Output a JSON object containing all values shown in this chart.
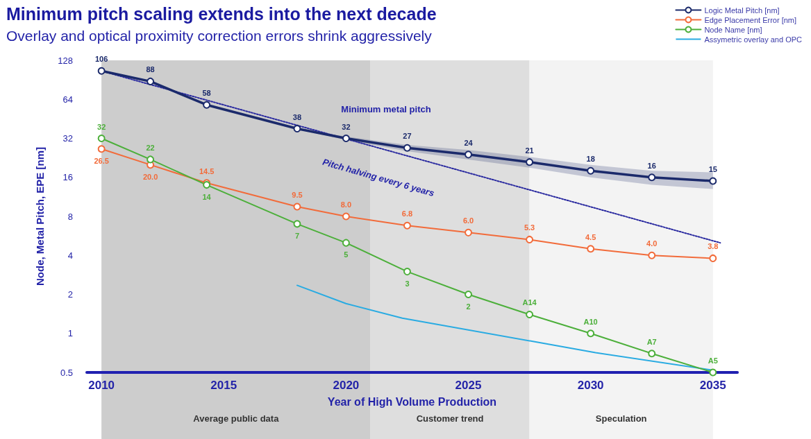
{
  "chart_data": {
    "type": "line",
    "title": "Minimum pitch scaling extends into the next decade",
    "subtitle": "Overlay and optical proximity correction errors shrink aggressively",
    "xlabel": "Year of High Volume Production",
    "ylabel": "Node, Metal Pitch, EPE [nm]",
    "x": [
      2010,
      2012,
      2014.3,
      2018,
      2020,
      2022.5,
      2025,
      2027.5,
      2030,
      2032.5,
      2035
    ],
    "series": [
      {
        "name": "Logic Metal Pitch [nm]",
        "color": "#1b2a6b",
        "values": [
          106,
          88,
          58,
          38,
          32,
          27,
          24,
          21,
          18,
          16,
          15
        ],
        "value_labels": [
          "106",
          "88",
          "58",
          "38",
          "32",
          "27",
          "24",
          "21",
          "18",
          "16",
          "15"
        ],
        "lower": [
          null,
          null,
          null,
          38,
          31,
          25.5,
          22,
          19,
          16,
          14,
          13
        ],
        "upper": [
          null,
          null,
          null,
          38,
          33,
          28.5,
          26,
          23,
          20,
          18,
          17.5
        ]
      },
      {
        "name": "Edge Placement Error [nm]",
        "color": "#f26b3a",
        "values": [
          26.5,
          20,
          14.5,
          9.5,
          8,
          6.8,
          6,
          5.3,
          4.5,
          4,
          3.8
        ],
        "value_labels": [
          "26.5",
          "20.0",
          "14.5",
          "9.5",
          "8.0",
          "6.8",
          "6.0",
          "5.3",
          "4.5",
          "4.0",
          "3.8"
        ]
      },
      {
        "name": "Node Name [nm]",
        "color": "#4caf3a",
        "values": [
          32,
          22,
          14,
          7,
          5,
          3,
          2,
          1.4,
          1,
          0.7,
          0.5
        ],
        "value_labels": [
          "32",
          "22",
          "14",
          "7",
          "5",
          "3",
          "2",
          "A14",
          "A10",
          "A7",
          "A5"
        ]
      },
      {
        "name": "Assymetric overlay and OPC",
        "color": "#29abe2",
        "marker": "none",
        "x": [
          2018,
          2020,
          2022.3,
          2027.6,
          2030.2,
          2035
        ],
        "values": [
          2.35,
          1.7,
          1.31,
          0.87,
          0.71,
          0.52
        ]
      },
      {
        "color": "#2a2aa0",
        "marker": "none",
        "line_style": "dotted",
        "x": [
          2010,
          2035.3
        ],
        "values": [
          106,
          5
        ]
      }
    ],
    "annotations": [
      "Minimum metal pitch",
      "Pitch halving every 6 years"
    ],
    "bands": [
      {
        "axis": "x",
        "from": 2010,
        "to": 2021,
        "label": "Average public data",
        "color": "#cdcdcd"
      },
      {
        "axis": "x",
        "from": 2021,
        "to": 2027.5,
        "label": "Customer trend",
        "color": "#dedede"
      },
      {
        "axis": "x",
        "from": 2027.5,
        "to": 2035,
        "label": "Speculation",
        "color": "#f3f3f3"
      }
    ],
    "xlim": [
      2009.4,
      2036
    ],
    "xticks": [
      2010,
      2015,
      2020,
      2025,
      2030,
      2035
    ],
    "ylim": [
      0.5,
      128
    ],
    "yticks": [
      0.5,
      1,
      2,
      4,
      8,
      16,
      32,
      64,
      128
    ],
    "log": true,
    "grid": false,
    "legend": "top right",
    "marker": "circle",
    "line_style": "solid"
  }
}
